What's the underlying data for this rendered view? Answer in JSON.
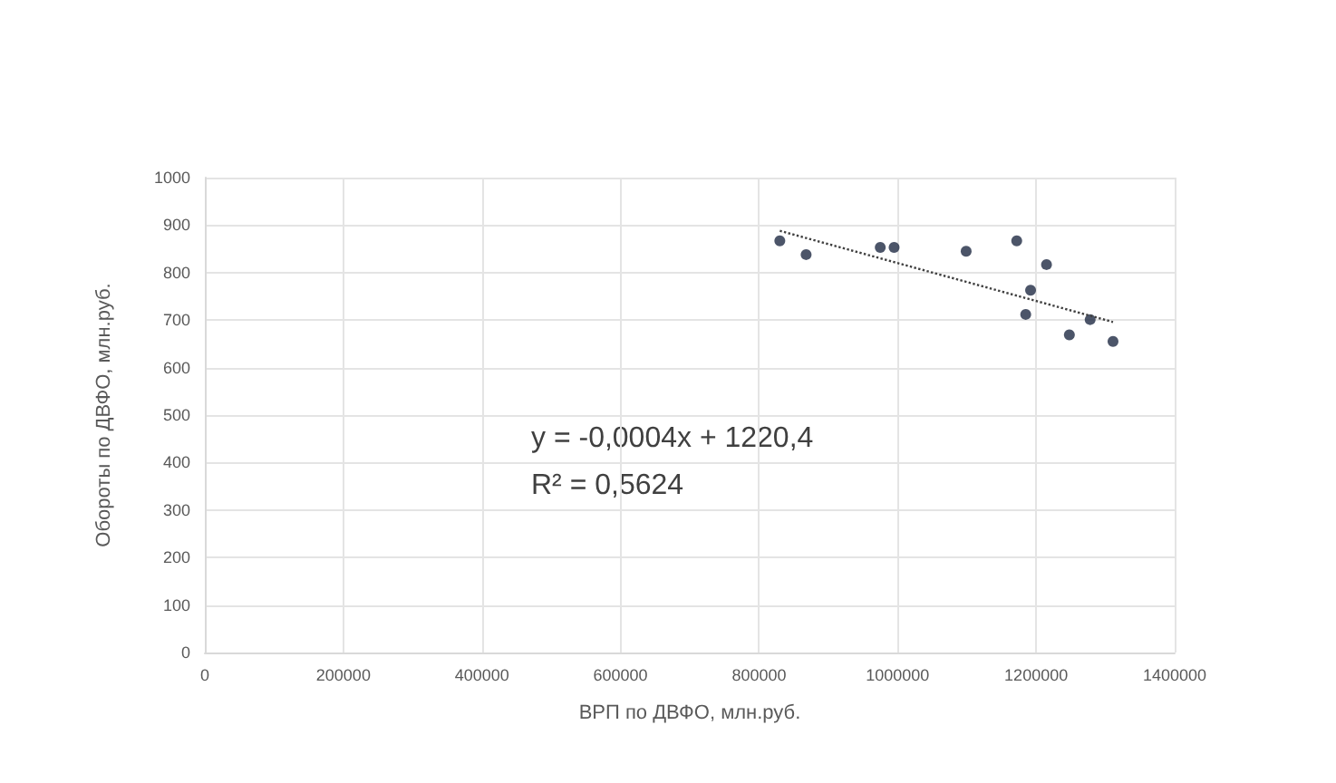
{
  "chart_data": {
    "type": "scatter",
    "xlabel": "ВРП по ДВФО, млн.руб.",
    "ylabel": "Обороты по ДВФО, млн.руб.",
    "xlim": [
      0,
      1400000
    ],
    "xticks": [
      0,
      200000,
      400000,
      600000,
      800000,
      1000000,
      1200000,
      1400000
    ],
    "ylim": [
      0,
      1000
    ],
    "yticks": [
      0,
      100,
      200,
      300,
      400,
      500,
      600,
      700,
      800,
      900,
      1000
    ],
    "grid": true,
    "marker": "circle",
    "series": [
      {
        "color": "#1f2a44",
        "x": [
          830000,
          868000,
          975000,
          995000,
          1099000,
          1172000,
          1215000,
          1192000,
          1185000,
          1248000,
          1278000,
          1311000
        ],
        "values": [
          867,
          838,
          853,
          853,
          845,
          867,
          817,
          763,
          712,
          669,
          701,
          655
        ]
      },
      {
        "type": "line",
        "marker": "none",
        "color": "#404040",
        "line_style": "dotted",
        "x": [
          830000,
          1311000
        ],
        "values": [
          888,
          696
        ]
      }
    ],
    "annotations": [
      "y = -0,0004x + 1220,4",
      "R² = 0,5624"
    ]
  }
}
